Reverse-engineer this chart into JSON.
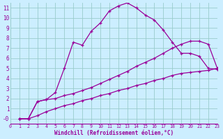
{
  "title": "",
  "xlabel": "Windchill (Refroidissement éolien,°C)",
  "bg_color": "#cceeff",
  "grid_color": "#99cccc",
  "line_color": "#990099",
  "xlim": [
    0,
    23
  ],
  "ylim": [
    -0.5,
    11.5
  ],
  "xticks": [
    0,
    1,
    2,
    3,
    4,
    5,
    6,
    7,
    8,
    9,
    10,
    11,
    12,
    13,
    14,
    15,
    16,
    17,
    18,
    19,
    20,
    21,
    22,
    23
  ],
  "yticks": [
    0,
    1,
    2,
    3,
    4,
    5,
    6,
    7,
    8,
    9,
    10,
    11
  ],
  "ytick_labels": [
    "-0",
    "1",
    "2",
    "3",
    "4",
    "5",
    "6",
    "7",
    "8",
    "9",
    "10",
    "11"
  ],
  "curve1_x": [
    1,
    2,
    3,
    4,
    5,
    6,
    7,
    8,
    9,
    10,
    11,
    12,
    13,
    14,
    15,
    16,
    17,
    18,
    19,
    20,
    21,
    22,
    23
  ],
  "curve1_y": [
    0,
    0,
    1.7,
    1.9,
    2.6,
    5.0,
    7.6,
    7.3,
    8.7,
    9.5,
    10.7,
    11.2,
    11.5,
    11.0,
    10.3,
    9.8,
    8.8,
    7.6,
    6.5,
    6.5,
    6.2,
    5.0,
    4.9
  ],
  "curve2_x": [
    1,
    2,
    3,
    4,
    5,
    6,
    7,
    8,
    9,
    10,
    11,
    12,
    13,
    14,
    15,
    16,
    17,
    18,
    19,
    20,
    21,
    22,
    23
  ],
  "curve2_y": [
    0,
    0,
    1.7,
    1.9,
    2.0,
    2.3,
    2.5,
    2.8,
    3.1,
    3.5,
    3.9,
    4.3,
    4.7,
    5.2,
    5.6,
    6.0,
    6.5,
    7.0,
    7.4,
    7.7,
    7.7,
    7.4,
    5.0
  ],
  "curve3_x": [
    1,
    2,
    3,
    4,
    5,
    6,
    7,
    8,
    9,
    10,
    11,
    12,
    13,
    14,
    15,
    16,
    17,
    18,
    19,
    20,
    21,
    22,
    23
  ],
  "curve3_y": [
    0,
    0,
    0.3,
    0.7,
    1.0,
    1.3,
    1.5,
    1.8,
    2.0,
    2.3,
    2.5,
    2.8,
    3.0,
    3.3,
    3.5,
    3.8,
    4.0,
    4.3,
    4.5,
    4.6,
    4.7,
    4.8,
    5.0
  ]
}
